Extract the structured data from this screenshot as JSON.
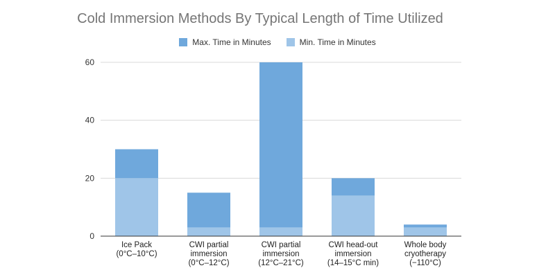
{
  "chart_data": {
    "type": "bar",
    "stacked": true,
    "title": "Cold Immersion Methods By Typical Length of Time Utilized",
    "xlabel": "",
    "ylabel": "",
    "ylim": [
      0,
      60
    ],
    "yticks": [
      0,
      20,
      40,
      60
    ],
    "grid": true,
    "legend_position": "top",
    "categories": [
      [
        "Ice Pack",
        "(0°C–10°C)"
      ],
      [
        "CWI partial",
        "immersion",
        "(0°C–12°C)"
      ],
      [
        "CWI partial",
        "immersion",
        "(12°C–21°C)"
      ],
      [
        "CWI head-out",
        "immersion",
        "(14–15°C min)"
      ],
      [
        "Whole body",
        "cryotherapy",
        "(−110°C)"
      ]
    ],
    "series": [
      {
        "name": "Max. Time in Minutes",
        "color": "#6fa8dc",
        "values": [
          30,
          15,
          60,
          20,
          4
        ]
      },
      {
        "name": "Min. Time in Minutes",
        "color": "#9fc5e8",
        "values": [
          20,
          3,
          3,
          14,
          3
        ]
      }
    ]
  }
}
